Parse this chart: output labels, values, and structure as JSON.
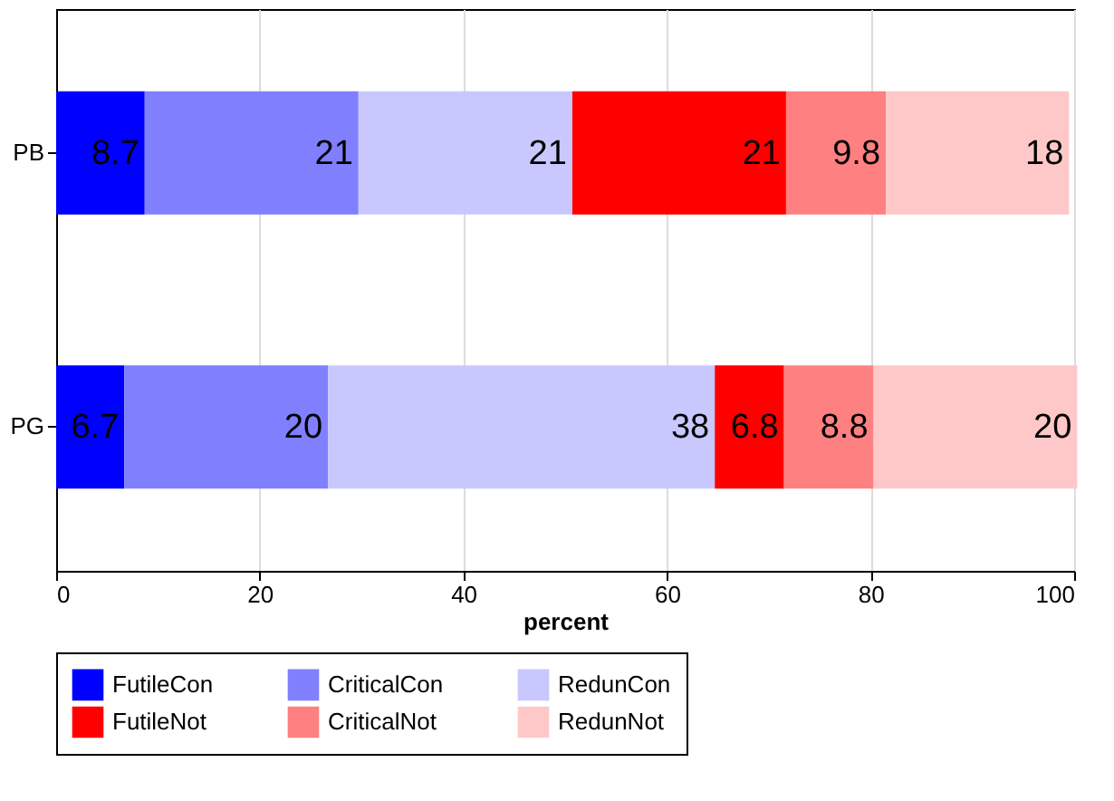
{
  "chart_data": {
    "type": "bar",
    "orientation": "horizontal",
    "stacked": true,
    "xlabel": "percent",
    "categories": [
      "PB",
      "PG"
    ],
    "series": [
      {
        "name": "FutileCon",
        "color": "#0000ff",
        "values": [
          8.7,
          6.7
        ]
      },
      {
        "name": "CriticalCon",
        "color": "#8080ff",
        "values": [
          21,
          20
        ]
      },
      {
        "name": "RedunCon",
        "color": "#c8c8ff",
        "values": [
          21,
          38
        ]
      },
      {
        "name": "FutileNot",
        "color": "#ff0000",
        "values": [
          21,
          6.8
        ]
      },
      {
        "name": "CriticalNot",
        "color": "#ff8080",
        "values": [
          9.8,
          8.8
        ]
      },
      {
        "name": "RedunNot",
        "color": "#ffc8c8",
        "values": [
          18,
          20
        ]
      }
    ],
    "xlim": [
      0,
      100
    ],
    "xticks": [
      0,
      20,
      40,
      60,
      80,
      100
    ],
    "grid": "x",
    "legend": "bottom",
    "data_labels": true
  }
}
